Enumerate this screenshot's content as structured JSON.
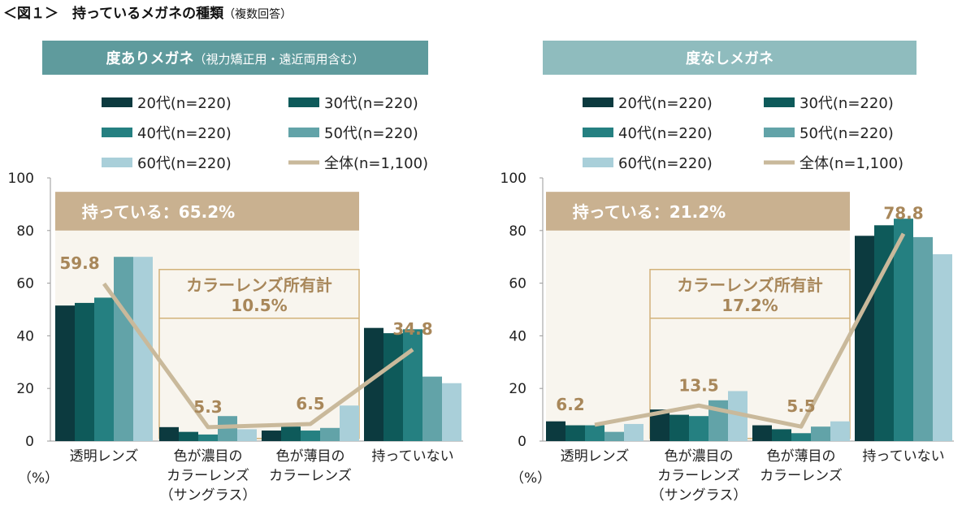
{
  "title": "＜図１＞　持っているメガネの種類",
  "title_note": "（複数回答）",
  "colors": {
    "series": [
      "#0c3a3f",
      "#0e5a5a",
      "#258081",
      "#62a3a8",
      "#a9cfd9"
    ],
    "line": "#c9b99b",
    "label": "#a8875a",
    "owned_band": "#c9b190",
    "owned_bg": "#f8f5ee"
  },
  "chart_data": [
    {
      "type": "bar",
      "title": "度ありメガネ",
      "subtitle": "（視力矯正用・遠近両用含む）",
      "header_color": "#5f9b9d",
      "ylabel": "（%）",
      "ylim": [
        0,
        100
      ],
      "yticks": [
        0,
        20,
        40,
        60,
        80,
        100
      ],
      "categories": [
        [
          "透明レンズ"
        ],
        [
          "色が濃目の",
          "カラーレンズ",
          "（サングラス）"
        ],
        [
          "色が薄目の",
          "カラーレンズ"
        ],
        [
          "持っていない"
        ]
      ],
      "series": [
        {
          "name": "20代(n=220)",
          "values": [
            51.5,
            5.3,
            4.0,
            43.0
          ]
        },
        {
          "name": "30代(n=220)",
          "values": [
            52.5,
            3.5,
            5.5,
            41.0
          ]
        },
        {
          "name": "40代(n=220)",
          "values": [
            54.5,
            2.5,
            4.0,
            42.5
          ]
        },
        {
          "name": "50代(n=220)",
          "values": [
            70.0,
            9.5,
            5.0,
            24.5
          ]
        },
        {
          "name": "60代(n=220)",
          "values": [
            70.0,
            4.5,
            13.5,
            22.0
          ]
        }
      ],
      "line": {
        "name": "全体(n=1,100)",
        "values": [
          59.8,
          5.3,
          6.5,
          34.8
        ],
        "labels": [
          "59.8",
          "5.3",
          "6.5",
          "34.8"
        ]
      },
      "owned_label": "持っている：65.2%",
      "color_lens_label": [
        "カラーレンズ所有計",
        "10.5%"
      ]
    },
    {
      "type": "bar",
      "title": "度なしメガネ",
      "subtitle": "",
      "header_color": "#8fbcbe",
      "ylabel": "（%）",
      "ylim": [
        0,
        100
      ],
      "yticks": [
        0,
        20,
        40,
        60,
        80,
        100
      ],
      "categories": [
        [
          "透明レンズ"
        ],
        [
          "色が濃目の",
          "カラーレンズ",
          "（サングラス）"
        ],
        [
          "色が薄目の",
          "カラーレンズ"
        ],
        [
          "持っていない"
        ]
      ],
      "series": [
        {
          "name": "20代(n=220)",
          "values": [
            7.5,
            12.0,
            6.0,
            78.0
          ]
        },
        {
          "name": "30代(n=220)",
          "values": [
            6.0,
            10.0,
            4.5,
            82.0
          ]
        },
        {
          "name": "40代(n=220)",
          "values": [
            6.0,
            9.5,
            3.0,
            84.5
          ]
        },
        {
          "name": "50代(n=220)",
          "values": [
            3.5,
            15.5,
            5.5,
            77.5
          ]
        },
        {
          "name": "60代(n=220)",
          "values": [
            6.5,
            19.0,
            7.5,
            71.0
          ]
        }
      ],
      "line": {
        "name": "全体(n=1,100)",
        "values": [
          6.2,
          13.5,
          5.5,
          78.8
        ],
        "labels": [
          "6.2",
          "13.5",
          "5.5",
          "78.8"
        ]
      },
      "owned_label": "持っている：21.2%",
      "color_lens_label": [
        "カラーレンズ所有計",
        "17.2%"
      ]
    }
  ]
}
